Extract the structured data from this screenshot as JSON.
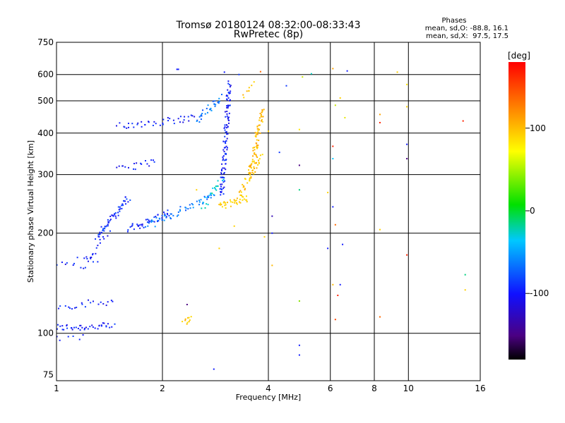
{
  "chart_data": {
    "type": "scatter",
    "title": "Tromsø 20180124 08:32:00-08:33:43",
    "subtitle": "RwPretec (8p)",
    "xlabel": "Frequency [MHz]",
    "ylabel": "Stationary phase Virtual Height [km]",
    "x_scale": "log",
    "y_scale": "log",
    "xlim": [
      1,
      16
    ],
    "ylim": [
      72,
      750
    ],
    "x_ticks": [
      1,
      2,
      4,
      6,
      8,
      10,
      16
    ],
    "x_tick_labels": [
      "1",
      "2",
      "4",
      "6",
      "8",
      "10",
      "16"
    ],
    "y_ticks": [
      75,
      100,
      200,
      300,
      400,
      500,
      600,
      750
    ],
    "y_tick_labels": [
      "75",
      "100",
      "200",
      "300",
      "400",
      "500",
      "600",
      "750"
    ],
    "grid": true,
    "phase_box": {
      "title": "Phases",
      "line_o": "mean, sd,O: -88.8, 16.1",
      "line_x": "mean, sd,X:  97.5, 17.5"
    },
    "colorbar": {
      "label": "[deg]",
      "range": [
        -180,
        180
      ],
      "ticks": [
        100,
        0,
        -100
      ],
      "tick_labels": [
        "100",
        "0",
        "-100"
      ]
    },
    "traces": [
      {
        "x0": 1.0,
        "x1": 1.45,
        "h0": 104,
        "h1": 105,
        "phase": -100,
        "n": 40
      },
      {
        "x0": 1.0,
        "x1": 1.2,
        "h0": 96,
        "h1": 98,
        "phase": -100,
        "n": 6
      },
      {
        "x0": 1.0,
        "x1": 1.45,
        "h0": 120,
        "h1": 125,
        "phase": -100,
        "n": 22
      },
      {
        "x0": 1.0,
        "x1": 1.3,
        "h0": 162,
        "h1": 168,
        "phase": -100,
        "n": 12
      },
      {
        "x0": 1.18,
        "x1": 1.4,
        "h0": 155,
        "h1": 200,
        "phase": -100,
        "n": 18
      },
      {
        "x0": 1.3,
        "x1": 1.6,
        "h0": 195,
        "h1": 255,
        "phase": -95,
        "n": 55
      },
      {
        "x0": 1.6,
        "x1": 2.1,
        "h0": 205,
        "h1": 230,
        "phase": -95,
        "n": 40
      },
      {
        "x0": 1.8,
        "x1": 2.8,
        "h0": 210,
        "h1": 260,
        "phase": -70,
        "n": 50
      },
      {
        "x0": 2.6,
        "x1": 3.0,
        "h0": 240,
        "h1": 300,
        "phase": -30,
        "n": 25
      },
      {
        "x0": 2.95,
        "x1": 3.1,
        "h0": 260,
        "h1": 560,
        "phase": -100,
        "n": 110
      },
      {
        "x0": 1.5,
        "x1": 2.5,
        "h0": 420,
        "h1": 445,
        "phase": -100,
        "n": 40
      },
      {
        "x0": 2.5,
        "x1": 2.95,
        "h0": 440,
        "h1": 510,
        "phase": -70,
        "n": 30
      },
      {
        "x0": 1.5,
        "x1": 1.9,
        "h0": 310,
        "h1": 330,
        "phase": -100,
        "n": 18
      },
      {
        "x0": 2.9,
        "x1": 3.5,
        "h0": 240,
        "h1": 255,
        "phase": 110,
        "n": 35
      },
      {
        "x0": 3.3,
        "x1": 3.8,
        "h0": 260,
        "h1": 340,
        "phase": 115,
        "n": 40
      },
      {
        "x0": 3.55,
        "x1": 3.85,
        "h0": 300,
        "h1": 470,
        "phase": 120,
        "n": 70
      },
      {
        "x0": 3.4,
        "x1": 3.6,
        "h0": 520,
        "h1": 560,
        "phase": 115,
        "n": 8
      },
      {
        "x0": 2.3,
        "x1": 2.4,
        "h0": 108,
        "h1": 112,
        "phase": 110,
        "n": 10
      }
    ],
    "scatter_points": [
      {
        "x": 2.2,
        "y": 622,
        "phase": -100
      },
      {
        "x": 2.22,
        "y": 622,
        "phase": -100
      },
      {
        "x": 3.0,
        "y": 610,
        "phase": -100
      },
      {
        "x": 3.3,
        "y": 600,
        "phase": -90
      },
      {
        "x": 3.8,
        "y": 612,
        "phase": 150
      },
      {
        "x": 4.5,
        "y": 555,
        "phase": -90
      },
      {
        "x": 5.0,
        "y": 590,
        "phase": 60
      },
      {
        "x": 5.3,
        "y": 603,
        "phase": -30
      },
      {
        "x": 6.1,
        "y": 625,
        "phase": 130
      },
      {
        "x": 6.7,
        "y": 615,
        "phase": -100
      },
      {
        "x": 9.3,
        "y": 610,
        "phase": 110
      },
      {
        "x": 9.9,
        "y": 560,
        "phase": 100
      },
      {
        "x": 4.9,
        "y": 410,
        "phase": 100
      },
      {
        "x": 4.0,
        "y": 405,
        "phase": 110
      },
      {
        "x": 4.9,
        "y": 320,
        "phase": -150
      },
      {
        "x": 4.9,
        "y": 270,
        "phase": -20
      },
      {
        "x": 5.9,
        "y": 265,
        "phase": 110
      },
      {
        "x": 6.1,
        "y": 365,
        "phase": 170
      },
      {
        "x": 6.1,
        "y": 335,
        "phase": -40
      },
      {
        "x": 6.2,
        "y": 212,
        "phase": 150
      },
      {
        "x": 6.1,
        "y": 240,
        "phase": -100
      },
      {
        "x": 5.9,
        "y": 180,
        "phase": -100
      },
      {
        "x": 6.5,
        "y": 185,
        "phase": -100
      },
      {
        "x": 6.1,
        "y": 140,
        "phase": 120
      },
      {
        "x": 6.3,
        "y": 130,
        "phase": 170
      },
      {
        "x": 6.4,
        "y": 140,
        "phase": -100
      },
      {
        "x": 6.2,
        "y": 110,
        "phase": 160
      },
      {
        "x": 4.9,
        "y": 125,
        "phase": 40
      },
      {
        "x": 4.9,
        "y": 92,
        "phase": -100
      },
      {
        "x": 4.9,
        "y": 86,
        "phase": -100
      },
      {
        "x": 4.1,
        "y": 225,
        "phase": -130
      },
      {
        "x": 4.1,
        "y": 200,
        "phase": -100
      },
      {
        "x": 4.1,
        "y": 160,
        "phase": 120
      },
      {
        "x": 4.3,
        "y": 350,
        "phase": -90
      },
      {
        "x": 3.9,
        "y": 195,
        "phase": 110
      },
      {
        "x": 3.2,
        "y": 210,
        "phase": 110
      },
      {
        "x": 2.9,
        "y": 180,
        "phase": 110
      },
      {
        "x": 2.8,
        "y": 78,
        "phase": -100
      },
      {
        "x": 2.35,
        "y": 122,
        "phase": -150
      },
      {
        "x": 2.5,
        "y": 270,
        "phase": 110
      },
      {
        "x": 8.3,
        "y": 455,
        "phase": 130
      },
      {
        "x": 8.3,
        "y": 430,
        "phase": 170
      },
      {
        "x": 8.3,
        "y": 205,
        "phase": 110
      },
      {
        "x": 8.3,
        "y": 112,
        "phase": 150
      },
      {
        "x": 9.9,
        "y": 370,
        "phase": -100
      },
      {
        "x": 9.9,
        "y": 335,
        "phase": -150
      },
      {
        "x": 9.9,
        "y": 172,
        "phase": 170
      },
      {
        "x": 9.9,
        "y": 480,
        "phase": 110
      },
      {
        "x": 14.3,
        "y": 435,
        "phase": 170
      },
      {
        "x": 14.5,
        "y": 150,
        "phase": -20
      },
      {
        "x": 14.5,
        "y": 135,
        "phase": 110
      },
      {
        "x": 6.4,
        "y": 510,
        "phase": 110
      },
      {
        "x": 6.6,
        "y": 445,
        "phase": 80
      },
      {
        "x": 6.2,
        "y": 485,
        "phase": 60
      }
    ]
  }
}
